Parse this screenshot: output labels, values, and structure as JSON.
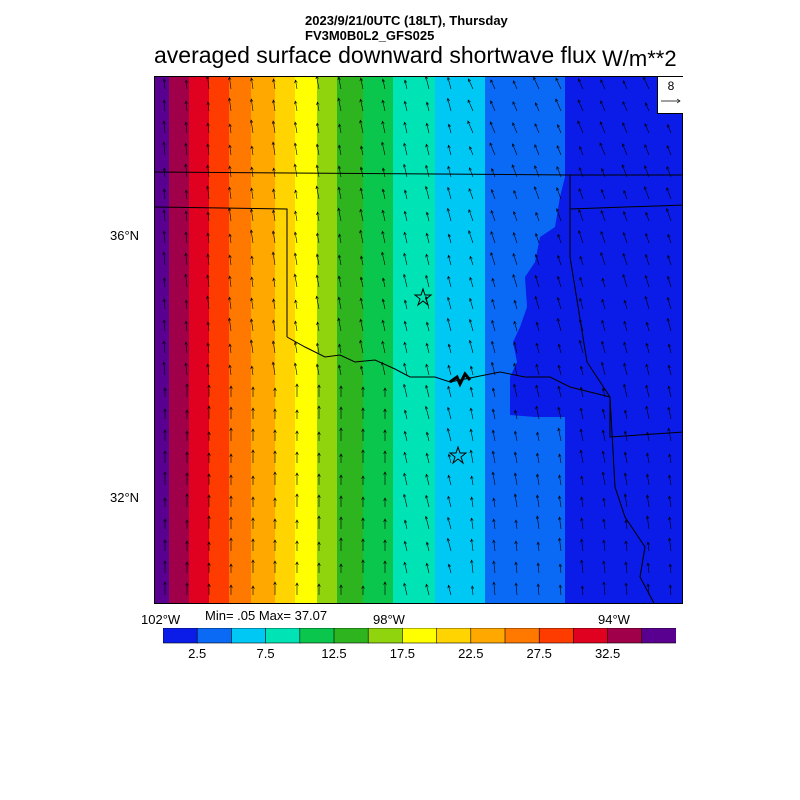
{
  "header": {
    "line1": "2023/9/21/0UTC (18LT), Thursday",
    "line2": "FV3M0B0L2_GFS025",
    "title": "averaged surface downward shortwave flux",
    "units": "W/m**2"
  },
  "reference_vector": {
    "label": "8"
  },
  "axes": {
    "lat_labels": [
      "36°N",
      "32°N"
    ],
    "lon_labels": [
      "102°W",
      "98°W",
      "94°W"
    ]
  },
  "stats": {
    "text": "Min= .05 Max= 37.07"
  },
  "colorbar": {
    "colors": [
      "#0b1ce8",
      "#0a6af5",
      "#00c8f5",
      "#00e3b5",
      "#0ac64c",
      "#2db41e",
      "#8fd40c",
      "#ffff00",
      "#ffd400",
      "#ffa800",
      "#ff7800",
      "#ff3c00",
      "#e00020",
      "#a0004a",
      "#5a0090"
    ],
    "labels": [
      "2.5",
      "7.5",
      "12.5",
      "17.5",
      "22.5",
      "27.5",
      "32.5"
    ]
  },
  "map": {
    "field_colors": {
      "deep_blue": "#0b1ce8",
      "blue": "#0a6af5",
      "cyan": "#00c8f5",
      "aqua": "#00e3b5",
      "green": "#0ac64c",
      "dark_green": "#2db41e",
      "lime": "#8fd40c",
      "yellow": "#ffff00",
      "gold": "#ffd400",
      "orange": "#ffa800",
      "dark_orange": "#ff7800",
      "red_orange": "#ff3c00",
      "red": "#e00020",
      "crimson": "#a0004a",
      "purple": "#5a0090"
    },
    "markers": [
      "station-star-north",
      "station-star-south"
    ]
  }
}
